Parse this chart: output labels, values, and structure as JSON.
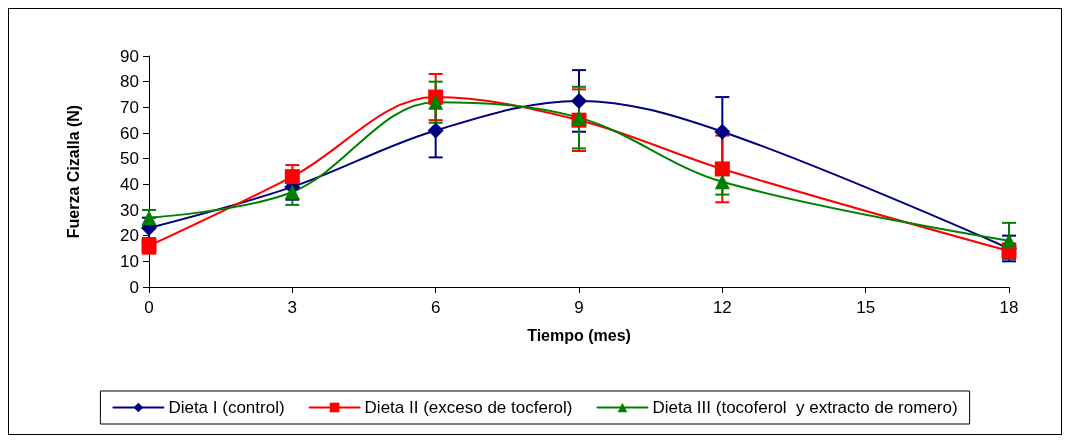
{
  "chart_data": {
    "type": "line",
    "xlabel": "Tiempo (mes)",
    "ylabel": "Fuerza Cizalla (N)",
    "x": [
      0,
      3,
      6,
      9,
      12,
      18
    ],
    "xlim": [
      0,
      18
    ],
    "xticks": [
      0,
      3,
      6,
      9,
      12,
      15,
      18
    ],
    "ylim": [
      0,
      90
    ],
    "yticks": [
      0,
      10,
      20,
      30,
      40,
      50,
      60,
      70,
      80,
      90
    ],
    "grid": false,
    "legend": "bottom",
    "line_style": "solid",
    "series": [
      {
        "name": "Dieta I (control)",
        "color": "#000080",
        "marker": "diamond",
        "values": [
          23,
          39,
          61,
          72.5,
          60.5,
          15
        ],
        "errors": [
          4,
          5,
          10.5,
          12,
          13.5,
          5
        ]
      },
      {
        "name": "Dieta II (exceso de tocferol)",
        "color": "#ff0000",
        "marker": "square",
        "values": [
          16,
          43,
          74,
          65,
          46,
          14
        ],
        "errors": [
          3,
          4.5,
          9,
          12,
          13,
          3
        ]
      },
      {
        "name": "Dieta III (tocoferol  y extracto de romero)",
        "color": "#008000",
        "marker": "triangle",
        "values": [
          27,
          37,
          72,
          66,
          41,
          18
        ],
        "errors": [
          3,
          5,
          8,
          12,
          5,
          7
        ]
      }
    ]
  }
}
